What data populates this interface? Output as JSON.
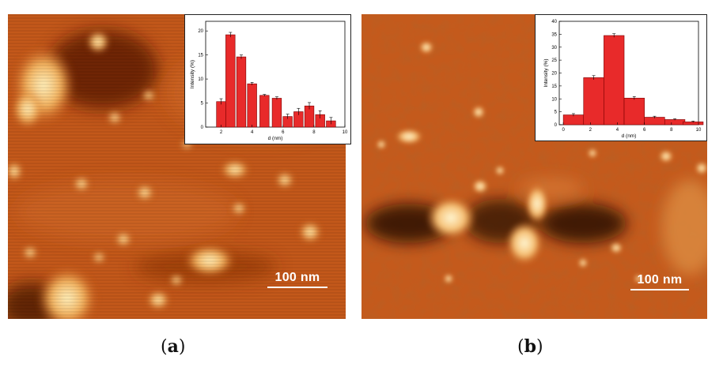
{
  "panel_a": {
    "scale_label": "100 nm",
    "caption_letter": "a",
    "inset": {
      "chart_data": {
        "type": "bar",
        "xlabel": "d (nm)",
        "ylabel": "Intensity (%)",
        "xlim": [
          1,
          10
        ],
        "ylim": [
          0,
          22
        ],
        "xticks": [
          2,
          4,
          6,
          8,
          10
        ],
        "yticks": [
          0,
          5,
          10,
          15,
          20
        ],
        "bin_width": 0.6,
        "x": [
          2.0,
          2.6,
          3.3,
          4.0,
          4.8,
          5.6,
          6.3,
          7.0,
          7.7,
          8.4,
          9.1
        ],
        "values": [
          5.3,
          19.2,
          14.6,
          9.0,
          6.6,
          6.0,
          2.2,
          3.2,
          4.4,
          2.6,
          1.3
        ],
        "errors": [
          0.6,
          0.5,
          0.4,
          0.3,
          0.2,
          0.3,
          0.5,
          0.7,
          0.7,
          0.8,
          0.7
        ]
      }
    }
  },
  "panel_b": {
    "scale_label": "100 nm",
    "caption_letter": "b",
    "inset": {
      "chart_data": {
        "type": "bar",
        "xlabel": "d (nm)",
        "ylabel": "Intensity (%)",
        "xlim": [
          -0.3,
          10
        ],
        "ylim": [
          0,
          40
        ],
        "xticks": [
          0,
          2,
          4,
          6,
          8,
          10
        ],
        "yticks": [
          0,
          5,
          10,
          15,
          20,
          25,
          30,
          35,
          40
        ],
        "bin_width": 1.5,
        "x": [
          0.75,
          2.25,
          3.75,
          5.25,
          6.75,
          8.25,
          9.6
        ],
        "values": [
          3.8,
          18.2,
          34.5,
          10.3,
          2.9,
          2.0,
          1.1
        ],
        "errors": [
          0.5,
          0.8,
          0.7,
          0.6,
          0.4,
          0.3,
          0.3
        ]
      }
    }
  }
}
